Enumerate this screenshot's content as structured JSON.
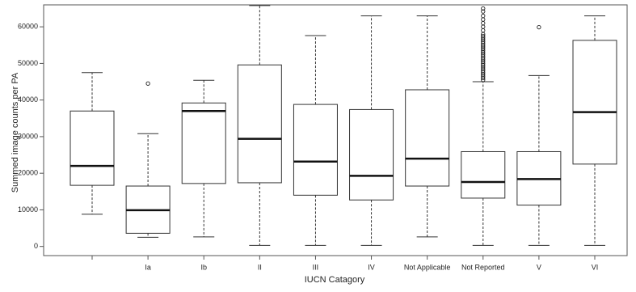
{
  "chart_data": {
    "type": "box",
    "title": "",
    "xlabel": "IUCN Catagory",
    "ylabel": "Summed image counts per PA",
    "ylim": [
      -2500,
      66000
    ],
    "yticks": [
      0,
      10000,
      20000,
      30000,
      40000,
      50000,
      60000
    ],
    "grid": false,
    "legend": "none",
    "categories": [
      "",
      "Ia",
      "Ib",
      "II",
      "III",
      "IV",
      "Not Applicable",
      "Not Reported",
      "V",
      "VI"
    ],
    "boxes": [
      {
        "category": "",
        "lower_whisker": 8800,
        "q1": 16700,
        "median": 22000,
        "q3": 37000,
        "upper_whisker": 47500,
        "outliers": []
      },
      {
        "category": "Ia",
        "lower_whisker": 2500,
        "q1": 3600,
        "median": 9900,
        "q3": 16500,
        "upper_whisker": 30800,
        "outliers": [
          44500
        ]
      },
      {
        "category": "Ib",
        "lower_whisker": 2600,
        "q1": 17200,
        "median": 37000,
        "q3": 39200,
        "upper_whisker": 45400,
        "outliers": []
      },
      {
        "category": "II",
        "lower_whisker": 300,
        "q1": 17400,
        "median": 29400,
        "q3": 49600,
        "upper_whisker": 65800,
        "outliers": []
      },
      {
        "category": "III",
        "lower_whisker": 300,
        "q1": 14000,
        "median": 23200,
        "q3": 38800,
        "upper_whisker": 57600,
        "outliers": []
      },
      {
        "category": "IV",
        "lower_whisker": 300,
        "q1": 12700,
        "median": 19300,
        "q3": 37400,
        "upper_whisker": 63000,
        "outliers": []
      },
      {
        "category": "Not Applicable",
        "lower_whisker": 2600,
        "q1": 16500,
        "median": 24000,
        "q3": 42800,
        "upper_whisker": 63000,
        "outliers": []
      },
      {
        "category": "Not Reported",
        "lower_whisker": 300,
        "q1": 13200,
        "median": 17600,
        "q3": 25900,
        "upper_whisker": 45000,
        "outliers": [
          45500,
          46000,
          46500,
          47000,
          47500,
          48000,
          48500,
          49000,
          49500,
          50000,
          50500,
          51000,
          51500,
          52000,
          52500,
          53000,
          53500,
          54000,
          54500,
          55000,
          55500,
          56000,
          56500,
          57000,
          57500,
          58000,
          59000,
          60000,
          61000,
          62000,
          63000,
          64200,
          65000
        ]
      },
      {
        "category": "V",
        "lower_whisker": 300,
        "q1": 11300,
        "median": 18400,
        "q3": 25900,
        "upper_whisker": 46700,
        "outliers": [
          59900
        ]
      },
      {
        "category": "VI",
        "lower_whisker": 300,
        "q1": 22500,
        "median": 36700,
        "q3": 56300,
        "upper_whisker": 63000,
        "outliers": []
      }
    ]
  }
}
